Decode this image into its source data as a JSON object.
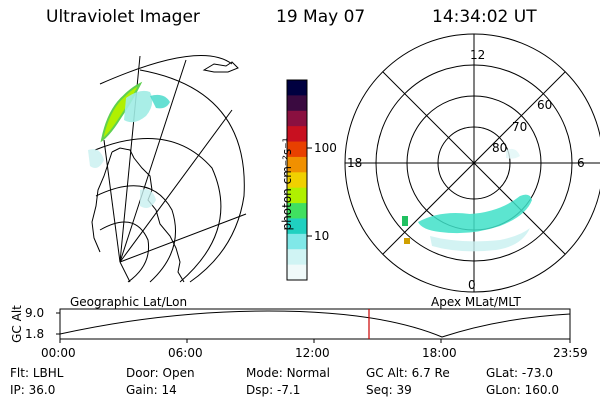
{
  "header": {
    "instrument": "Ultraviolet Imager",
    "date": "19 May 07",
    "time": "14:34:02 UT"
  },
  "colorbar": {
    "unit_label": "photon cm⁻²s⁻¹",
    "ticks": [
      "100",
      "10"
    ],
    "colors_top_to_bottom": [
      "#000040",
      "#3a0a40",
      "#8a1040",
      "#c81020",
      "#e84000",
      "#f09000",
      "#f0d000",
      "#b0f000",
      "#40e060",
      "#20d0c0",
      "#80e8e8",
      "#d0f4f4",
      "#f0fafa"
    ]
  },
  "polar_plot": {
    "mlt_labels": {
      "top": "12",
      "left": "18",
      "right": "6",
      "bottom": "0"
    },
    "lat_labels": [
      "60",
      "70",
      "80"
    ]
  },
  "timeline": {
    "left_title": "Geographic Lat/Lon",
    "right_title": "Apex MLat/MLT",
    "y_axis_label": "GC Alt",
    "y_ticks": [
      "9.0",
      "1.8"
    ],
    "x_ticks": [
      "00:00",
      "06:00",
      "12:00",
      "18:00",
      "23:59"
    ],
    "cursor_color": "#cc0000"
  },
  "info": {
    "row1": [
      {
        "label": "Flt:",
        "value": "LBHL"
      },
      {
        "label": "Door:",
        "value": "Open"
      },
      {
        "label": "Mode:",
        "value": "Normal"
      },
      {
        "label": "GC Alt:",
        "value": "6.7 Re"
      },
      {
        "label": "GLat:",
        "value": "-73.0"
      }
    ],
    "row2": [
      {
        "label": "IP:",
        "value": "36.0"
      },
      {
        "label": "Gain:",
        "value": "14"
      },
      {
        "label": "Dsp:",
        "value": "-7.1"
      },
      {
        "label": "Seq:",
        "value": "39"
      },
      {
        "label": "GLon:",
        "value": "160.0"
      }
    ]
  }
}
